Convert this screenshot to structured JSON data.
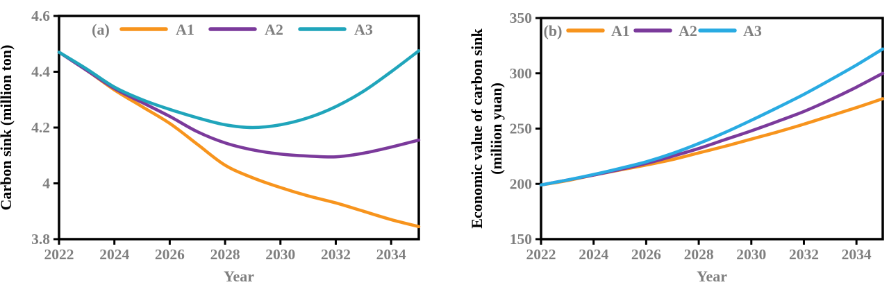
{
  "figure": {
    "description": "Two-panel line figure: (a) projected carbon sink, (b) projected economic value of carbon sink, scenarios A1/A2/A3, 2022-2035",
    "text_color_axis": "#7f7f7f",
    "text_color_title": "#000000",
    "axis_color": "#000000",
    "background": "#ffffff"
  },
  "chart_data": [
    {
      "type": "line",
      "panel_label": "(a)",
      "xlabel": "Year",
      "ylabel": "Carbon sink (million ton)",
      "ylabel_lines": [
        "Carbon sink (million ton)"
      ],
      "x": [
        2022,
        2023,
        2024,
        2025,
        2026,
        2027,
        2028,
        2029,
        2030,
        2031,
        2032,
        2033,
        2034,
        2035
      ],
      "xlim": [
        2022,
        2035
      ],
      "ylim": [
        3.8,
        4.6
      ],
      "xticks": [
        2022,
        2024,
        2026,
        2028,
        2030,
        2032,
        2034
      ],
      "xtick_labels": [
        "2022",
        "2024",
        "2026",
        "2028",
        "2030",
        "2032",
        "2034"
      ],
      "yticks": [
        3.8,
        4,
        4.2,
        4.4,
        4.6
      ],
      "ytick_labels": [
        "3.8",
        "4",
        "4.2",
        "4.4",
        "4.6"
      ],
      "grid": false,
      "legend_position": "top-inside",
      "series": [
        {
          "name": "A1",
          "color": "#F7941D",
          "values": [
            4.47,
            4.405,
            4.335,
            4.275,
            4.215,
            4.14,
            4.065,
            4.02,
            3.985,
            3.955,
            3.93,
            3.9,
            3.87,
            3.845
          ]
        },
        {
          "name": "A2",
          "color": "#7B3A9B",
          "values": [
            4.47,
            4.405,
            4.34,
            4.29,
            4.24,
            4.185,
            4.145,
            4.12,
            4.105,
            4.098,
            4.095,
            4.108,
            4.13,
            4.155
          ]
        },
        {
          "name": "A3",
          "color": "#20A5BB",
          "values": [
            4.47,
            4.41,
            4.345,
            4.3,
            4.265,
            4.235,
            4.21,
            4.2,
            4.21,
            4.235,
            4.275,
            4.33,
            4.4,
            4.475
          ]
        }
      ]
    },
    {
      "type": "line",
      "panel_label": "(b)",
      "xlabel": "Year",
      "ylabel": "Economic value of carbon sink (miliion yuan)",
      "ylabel_lines": [
        "Economic value of carbon sink",
        "(miliion yuan)"
      ],
      "x": [
        2022,
        2023,
        2024,
        2025,
        2026,
        2027,
        2028,
        2029,
        2030,
        2031,
        2032,
        2033,
        2034,
        2035
      ],
      "xlim": [
        2022,
        2035
      ],
      "ylim": [
        150,
        350
      ],
      "xticks": [
        2022,
        2024,
        2026,
        2028,
        2030,
        2032,
        2034
      ],
      "xtick_labels": [
        "2022",
        "2024",
        "2026",
        "2028",
        "2030",
        "2032",
        "2034"
      ],
      "yticks": [
        150,
        200,
        250,
        300,
        350
      ],
      "ytick_labels": [
        "150",
        "200",
        "250",
        "300",
        "350"
      ],
      "grid": false,
      "legend_position": "top-inside",
      "series": [
        {
          "name": "A1",
          "color": "#F7941D",
          "values": [
            199,
            203,
            208,
            212.5,
            217,
            222,
            228,
            234,
            240.5,
            247,
            254,
            261.5,
            269,
            277
          ]
        },
        {
          "name": "A2",
          "color": "#7B3A9B",
          "values": [
            199,
            203.5,
            208,
            213,
            218.5,
            225,
            232,
            240,
            248,
            256.5,
            265.5,
            276,
            287.5,
            300
          ]
        },
        {
          "name": "A3",
          "color": "#29ABE2",
          "values": [
            199,
            203.5,
            208.5,
            214,
            220,
            227.5,
            236.5,
            246.5,
            257.5,
            269,
            281,
            294,
            307.5,
            322
          ]
        }
      ]
    }
  ]
}
